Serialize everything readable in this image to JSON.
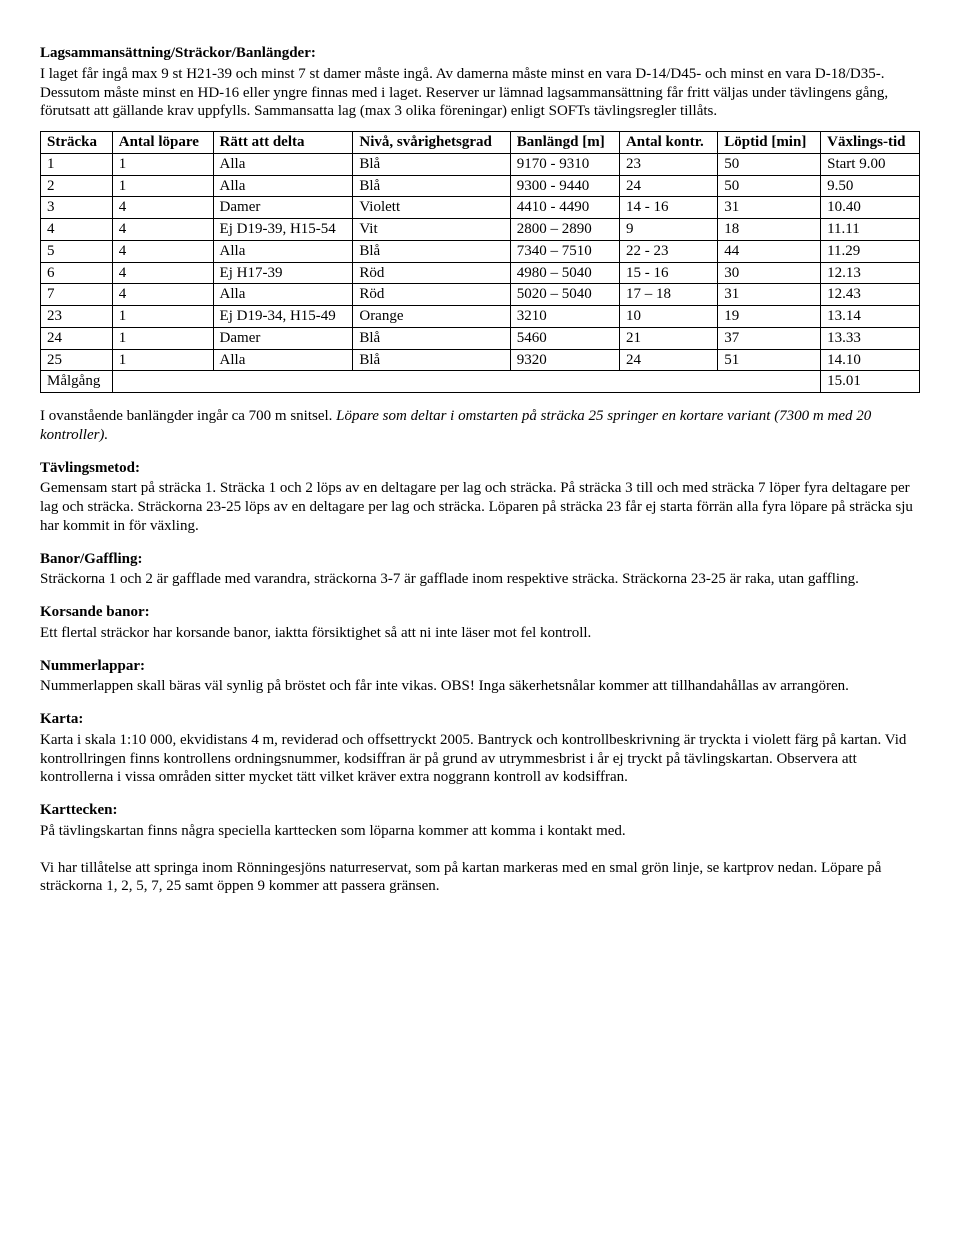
{
  "s1": {
    "heading": "Lagsammansättning/Sträckor/Banlängder:",
    "body": "I laget får ingå max 9 st H21-39 och minst 7 st damer måste ingå. Av damerna måste minst en vara D-14/D45- och minst en vara D-18/D35-. Dessutom måste minst en HD-16 eller yngre finnas med i laget. Reserver ur lämnad lagsammansättning får fritt väljas under tävlingens gång, förutsatt att gällande krav uppfylls. Sammansatta lag (max 3 olika föreningar) enligt SOFTs tävlingsregler tillåts."
  },
  "table": {
    "columns": [
      "Sträcka",
      "Antal löpare",
      "Rätt att delta",
      "Nivå, svårighetsgrad",
      "Banlängd [m]",
      "Antal kontr.",
      "Löptid [min]",
      "Växlings-tid"
    ],
    "rows": [
      [
        "1",
        "1",
        "Alla",
        "Blå",
        "9170 - 9310",
        "23",
        "50",
        "Start 9.00"
      ],
      [
        "2",
        "1",
        "Alla",
        "Blå",
        "9300 - 9440",
        "24",
        "50",
        "9.50"
      ],
      [
        "3",
        "4",
        "Damer",
        "Violett",
        "4410 - 4490",
        "14 - 16",
        "31",
        "10.40"
      ],
      [
        "4",
        "4",
        "Ej D19-39, H15-54",
        "Vit",
        "2800 – 2890",
        "9",
        "18",
        "11.11"
      ],
      [
        "5",
        "4",
        "Alla",
        "Blå",
        "7340 – 7510",
        "22 - 23",
        "44",
        "11.29"
      ],
      [
        "6",
        "4",
        "Ej H17-39",
        "Röd",
        "4980 – 5040",
        "15 - 16",
        "30",
        "12.13"
      ],
      [
        "7",
        "4",
        "Alla",
        "Röd",
        "5020 – 5040",
        "17 – 18",
        "31",
        "12.43"
      ],
      [
        "23",
        "1",
        "Ej D19-34, H15-49",
        "Orange",
        "3210",
        "10",
        "19",
        "13.14"
      ],
      [
        "24",
        "1",
        "Damer",
        "Blå",
        "5460",
        "21",
        "37",
        "13.33"
      ],
      [
        "25",
        "1",
        "Alla",
        "Blå",
        "9320",
        "24",
        "51",
        "14.10"
      ]
    ],
    "footer_label": "Målgång",
    "footer_value": "15.01"
  },
  "after_table": {
    "plain": "I ovanstående banlängder ingår ca 700 m snitsel. ",
    "italic": "Löpare som deltar i omstarten på sträcka 25 springer en kortare variant (7300 m med 20 kontroller)."
  },
  "s2": {
    "heading": "Tävlingsmetod:",
    "body": "Gemensam start på sträcka 1. Sträcka 1 och 2 löps av en deltagare per lag och sträcka. På sträcka 3 till och med sträcka 7 löper fyra deltagare per lag och sträcka. Sträckorna 23-25 löps av en deltagare per lag och sträcka. Löparen på sträcka 23 får ej starta förrän alla fyra löpare på sträcka sju har kommit in för växling."
  },
  "s3": {
    "heading": "Banor/Gaffling:",
    "body": "Sträckorna 1 och 2 är gafflade med varandra, sträckorna 3-7 är gafflade inom respektive sträcka. Sträckorna 23-25 är raka, utan gaffling."
  },
  "s4": {
    "heading": "Korsande banor:",
    "body": "Ett flertal sträckor har korsande banor, iaktta försiktighet så att ni inte läser mot fel kontroll."
  },
  "s5": {
    "heading": "Nummerlappar:",
    "body": "Nummerlappen skall bäras väl synlig på bröstet och får inte vikas. OBS! Inga säkerhetsnålar kommer att tillhandahållas av arrangören."
  },
  "s6": {
    "heading": "Karta:",
    "body": "Karta i skala 1:10 000, ekvidistans 4 m, reviderad och offsettryckt 2005. Bantryck och kontrollbeskrivning är tryckta i violett färg på kartan. Vid kontrollringen finns kontrollens ordningsnummer, kodsiffran är på grund av utrymmesbrist i år ej tryckt på tävlingskartan. Observera att kontrollerna i vissa områden sitter mycket tätt vilket kräver extra noggrann kontroll av kodsiffran."
  },
  "s7": {
    "heading": "Karttecken:",
    "body": "På tävlingskartan finns några speciella karttecken som löparna kommer att komma i kontakt med."
  },
  "s8": {
    "body": "Vi har tillåtelse att springa inom Rönningesjöns naturreservat, som på kartan markeras med en smal grön linje, se kartprov nedan. Löpare på sträckorna 1, 2, 5, 7, 25 samt öppen 9 kommer att passera gränsen."
  }
}
